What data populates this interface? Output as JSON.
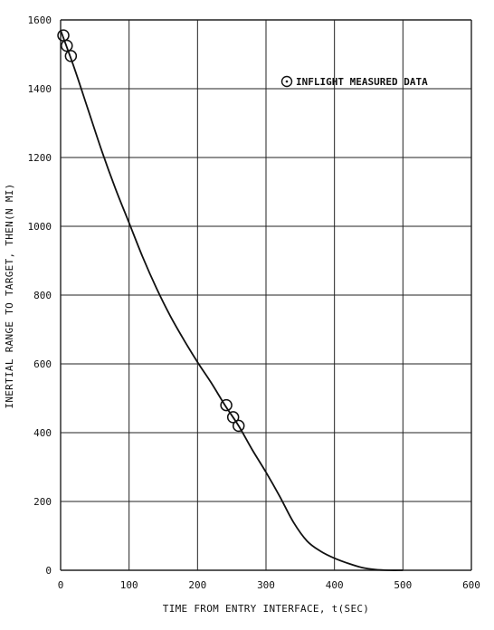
{
  "chart_data": {
    "type": "line",
    "title": "",
    "xlabel": "TIME FROM ENTRY INTERFACE, t(SEC)",
    "ylabel": "INERTIAL RANGE TO TARGET, THEN(N MI)",
    "xlim": [
      0,
      600
    ],
    "ylim": [
      0,
      1600
    ],
    "x_ticks": [
      0,
      100,
      200,
      300,
      400,
      500,
      600
    ],
    "y_ticks": [
      0,
      200,
      400,
      600,
      800,
      1000,
      1200,
      1400,
      1600
    ],
    "grid": true,
    "legend": {
      "position": "top-right",
      "entries": [
        "INFLIGHT MEASURED DATA"
      ]
    },
    "series": [
      {
        "kind": "line",
        "x": [
          0,
          20,
          40,
          60,
          80,
          100,
          120,
          140,
          160,
          180,
          200,
          220,
          240,
          260,
          280,
          300,
          320,
          340,
          360,
          380,
          400,
          420,
          440,
          460,
          480,
          500
        ],
        "y": [
          1570,
          1460,
          1340,
          1220,
          1110,
          1010,
          910,
          820,
          740,
          670,
          605,
          545,
          480,
          420,
          350,
          285,
          215,
          140,
          85,
          55,
          35,
          20,
          8,
          2,
          0,
          0
        ]
      },
      {
        "name": "INFLIGHT MEASURED DATA",
        "kind": "scatter",
        "x": [
          4,
          9,
          15,
          242,
          252,
          260
        ],
        "y": [
          1555,
          1525,
          1495,
          480,
          445,
          420
        ]
      }
    ]
  },
  "axis_labels": {
    "x_ticks": [
      "0",
      "100",
      "200",
      "300",
      "400",
      "500",
      "600"
    ],
    "y_ticks": [
      "0",
      "200",
      "400",
      "600",
      "800",
      "1000",
      "1200",
      "1400",
      "1600"
    ]
  },
  "colors": {
    "ink": "#111111",
    "grid": "#222222",
    "background": "#ffffff"
  }
}
